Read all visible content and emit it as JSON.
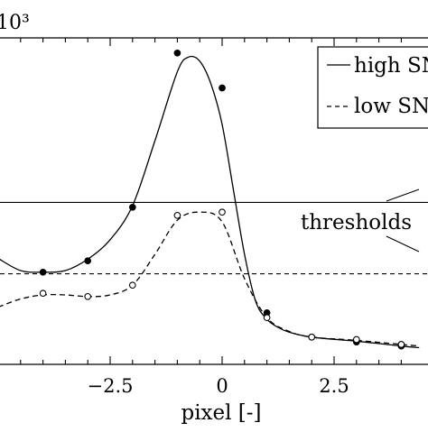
{
  "chart_data": {
    "type": "line",
    "title": "",
    "xlabel": "pixel [-]",
    "ylabel": "",
    "y_scale_label": "10³",
    "xlim": [
      -5.0,
      4.4
    ],
    "ylim": [
      -0.45,
      3.85
    ],
    "x_ticks": [
      -2.5,
      0,
      2.5
    ],
    "x_tick_labels": [
      "−2.5",
      "0",
      "2.5"
    ],
    "grid": false,
    "legend_position": "top-right",
    "series": [
      {
        "name": "high SNR",
        "legend_label": "high SN",
        "style": "solid",
        "marker": "filled-circle",
        "color": "#000000",
        "points": {
          "x": [
            -4.0,
            -3.0,
            -2.0,
            -1.0,
            0.0,
            1.0,
            2.0,
            3.0,
            4.0
          ],
          "y": [
            0.98,
            1.12,
            1.78,
            3.68,
            3.25,
            0.48,
            0.18,
            0.12,
            0.07
          ]
        },
        "curve": {
          "x": [
            -5.0,
            -4.5,
            -4.0,
            -3.5,
            -3.0,
            -2.5,
            -2.0,
            -1.5,
            -1.0,
            -0.75,
            -0.5,
            -0.25,
            0.0,
            0.25,
            0.5,
            0.75,
            1.0,
            1.25,
            1.5,
            2.0,
            3.0,
            4.0,
            4.4
          ],
          "y": [
            1.15,
            1.0,
            0.98,
            1.0,
            1.14,
            1.38,
            1.8,
            2.6,
            3.45,
            3.63,
            3.58,
            3.3,
            2.8,
            2.0,
            1.2,
            0.62,
            0.4,
            0.3,
            0.24,
            0.18,
            0.13,
            0.07,
            0.05
          ]
        }
      },
      {
        "name": "low SNR",
        "legend_label": "low SN",
        "style": "dashed",
        "marker": "open-circle",
        "color": "#000000",
        "points": {
          "x": [
            -4.0,
            -3.0,
            -2.0,
            -1.0,
            0.0,
            1.0,
            2.0,
            3.0,
            4.0
          ],
          "y": [
            0.72,
            0.68,
            0.82,
            1.68,
            1.72,
            0.42,
            0.18,
            0.15,
            0.09
          ]
        },
        "curve": {
          "x": [
            -5.0,
            -4.5,
            -4.0,
            -3.5,
            -3.0,
            -2.5,
            -2.0,
            -1.5,
            -1.0,
            -0.5,
            0.0,
            0.5,
            1.0,
            1.5,
            2.0,
            3.0,
            4.0,
            4.4
          ],
          "y": [
            0.55,
            0.65,
            0.7,
            0.7,
            0.68,
            0.7,
            0.82,
            1.2,
            1.62,
            1.72,
            1.6,
            0.9,
            0.42,
            0.25,
            0.18,
            0.14,
            0.09,
            0.07
          ]
        }
      }
    ],
    "thresholds": [
      {
        "series": "high SNR",
        "y": 1.84,
        "style": "solid"
      },
      {
        "series": "low SNR",
        "y": 0.96,
        "style": "dashed"
      }
    ],
    "annotations": [
      {
        "text": "thresholds",
        "points_to": "both threshold lines"
      }
    ]
  }
}
